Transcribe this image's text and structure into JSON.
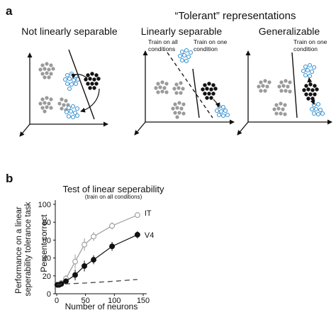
{
  "panel_a": {
    "letter": "a",
    "group_title": "“Tolerant” representations",
    "titles": [
      "Not linearly separable",
      "Linearly separable",
      "Generalizable"
    ],
    "annotations": {
      "train_all": [
        "Train on all",
        "conditions"
      ],
      "train_one_b": [
        "Train on one",
        "condition"
      ],
      "train_one_c": [
        "Train on one",
        "condition"
      ]
    }
  },
  "panel_b": {
    "letter": "b",
    "title": "Test of linear seperability",
    "subtitle": "(train on all conditions)",
    "outer_ylabel": [
      "Performance on a linear",
      "seperability tolerance task"
    ],
    "ylabel": "Percent correct",
    "xlabel": "Number of neurons",
    "yticks": [
      "0",
      "20",
      "40",
      "60",
      "80",
      "100"
    ],
    "xticks": [
      "0",
      "50",
      "100",
      "150"
    ],
    "chart_data": {
      "type": "line",
      "xlabel": "Number of neurons",
      "ylabel": "Percent correct",
      "xlim": [
        0,
        150
      ],
      "ylim": [
        0,
        100
      ],
      "series": [
        {
          "name": "IT",
          "x": [
            1,
            4,
            8,
            16,
            32,
            48,
            64,
            96,
            140
          ],
          "y": [
            10,
            10,
            12,
            17,
            36,
            55,
            64,
            76,
            88
          ],
          "err": [
            2,
            2,
            3,
            4,
            8,
            7,
            5,
            4,
            3
          ],
          "marker": "open",
          "color": "#9a9a9a"
        },
        {
          "name": "V4",
          "x": [
            1,
            4,
            8,
            16,
            32,
            48,
            64,
            96,
            140
          ],
          "y": [
            10,
            10,
            11,
            14,
            21,
            31,
            38,
            53,
            66
          ],
          "err": [
            2,
            2,
            2,
            3,
            6,
            6,
            5,
            5,
            4
          ],
          "marker": "filled",
          "color": "#111111"
        },
        {
          "x": [
            0,
            16,
            50,
            100,
            140
          ],
          "y": [
            10,
            11,
            12,
            14,
            16
          ],
          "style": "dashed",
          "color": "#444444"
        }
      ]
    }
  }
}
